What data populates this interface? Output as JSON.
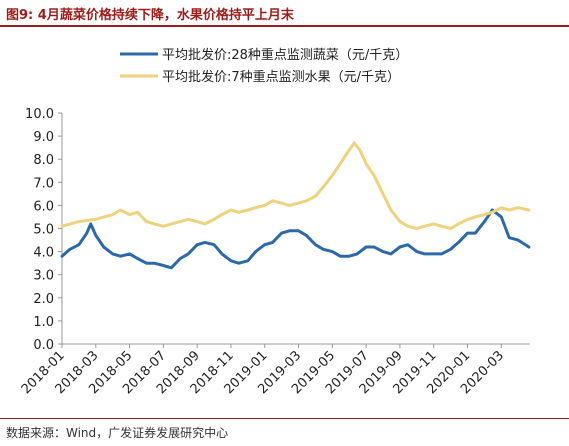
{
  "title": "图9:  4月蔬菜价格持续下降，水果价格持平上月末",
  "source": "数据来源：Wind，广发证券发展研究中心",
  "colors": {
    "title": "#9e1b1b",
    "veg": "#2b69a8",
    "fruit": "#efd27e",
    "axis": "#999999"
  },
  "chart_data": {
    "type": "line",
    "ylim": [
      0,
      10
    ],
    "yticks": [
      "0.0",
      "1.0",
      "2.0",
      "3.0",
      "4.0",
      "5.0",
      "6.0",
      "7.0",
      "8.0",
      "9.0",
      "10.0"
    ],
    "xlim": [
      "2018-01",
      "2020-04"
    ],
    "xticks": [
      "2018-01",
      "2018-03",
      "2018-05",
      "2018-07",
      "2018-09",
      "2018-11",
      "2019-01",
      "2019-03",
      "2019-05",
      "2019-07",
      "2019-09",
      "2019-11",
      "2020-01",
      "2020-03"
    ],
    "legend_position": "top",
    "grid": false,
    "series": [
      {
        "name": "平均批发价:28种重点监测蔬菜（元/千克）",
        "color": "#2b69a8",
        "x": [
          "2018-01-01",
          "2018-01-15",
          "2018-02-01",
          "2018-02-15",
          "2018-02-22",
          "2018-03-01",
          "2018-03-15",
          "2018-04-01",
          "2018-04-15",
          "2018-05-01",
          "2018-05-15",
          "2018-06-01",
          "2018-06-15",
          "2018-07-01",
          "2018-07-15",
          "2018-08-01",
          "2018-08-15",
          "2018-09-01",
          "2018-09-15",
          "2018-10-01",
          "2018-10-15",
          "2018-11-01",
          "2018-11-15",
          "2018-12-01",
          "2018-12-15",
          "2019-01-01",
          "2019-01-15",
          "2019-02-01",
          "2019-02-15",
          "2019-03-01",
          "2019-03-15",
          "2019-04-01",
          "2019-04-15",
          "2019-05-01",
          "2019-05-15",
          "2019-06-01",
          "2019-06-15",
          "2019-07-01",
          "2019-07-15",
          "2019-08-01",
          "2019-08-15",
          "2019-09-01",
          "2019-09-15",
          "2019-10-01",
          "2019-10-15",
          "2019-11-01",
          "2019-11-15",
          "2019-12-01",
          "2019-12-15",
          "2020-01-01",
          "2020-01-15",
          "2020-02-01",
          "2020-02-15",
          "2020-03-01",
          "2020-03-15",
          "2020-04-01",
          "2020-04-20"
        ],
        "values": [
          3.8,
          4.1,
          4.3,
          4.8,
          5.2,
          4.7,
          4.2,
          3.9,
          3.8,
          3.9,
          3.7,
          3.5,
          3.5,
          3.4,
          3.3,
          3.7,
          3.9,
          4.3,
          4.4,
          4.3,
          3.9,
          3.6,
          3.5,
          3.6,
          4.0,
          4.3,
          4.4,
          4.8,
          4.9,
          4.9,
          4.7,
          4.3,
          4.1,
          4.0,
          3.8,
          3.8,
          3.9,
          4.2,
          4.2,
          4.0,
          3.9,
          4.2,
          4.3,
          4.0,
          3.9,
          3.9,
          3.9,
          4.1,
          4.4,
          4.8,
          4.8,
          5.3,
          5.8,
          5.5,
          4.6,
          4.5,
          4.2
        ]
      },
      {
        "name": "平均批发价:7种重点监测水果（元/千克）",
        "color": "#efd27e",
        "x": [
          "2018-01-01",
          "2018-02-01",
          "2018-03-01",
          "2018-04-01",
          "2018-04-15",
          "2018-05-01",
          "2018-05-15",
          "2018-06-01",
          "2018-06-15",
          "2018-07-01",
          "2018-07-15",
          "2018-08-01",
          "2018-08-15",
          "2018-09-01",
          "2018-09-15",
          "2018-10-01",
          "2018-10-15",
          "2018-11-01",
          "2018-11-15",
          "2018-12-01",
          "2018-12-15",
          "2019-01-01",
          "2019-01-15",
          "2019-02-01",
          "2019-02-15",
          "2019-03-01",
          "2019-03-15",
          "2019-04-01",
          "2019-04-15",
          "2019-05-01",
          "2019-05-15",
          "2019-06-01",
          "2019-06-10",
          "2019-06-20",
          "2019-07-01",
          "2019-07-15",
          "2019-08-01",
          "2019-08-15",
          "2019-09-01",
          "2019-09-15",
          "2019-10-01",
          "2019-10-15",
          "2019-11-01",
          "2019-11-15",
          "2019-12-01",
          "2019-12-15",
          "2020-01-01",
          "2020-01-15",
          "2020-02-01",
          "2020-02-15",
          "2020-03-01",
          "2020-03-15",
          "2020-04-01",
          "2020-04-20"
        ],
        "values": [
          5.1,
          5.3,
          5.4,
          5.6,
          5.8,
          5.6,
          5.7,
          5.3,
          5.2,
          5.1,
          5.2,
          5.3,
          5.4,
          5.3,
          5.2,
          5.4,
          5.6,
          5.8,
          5.7,
          5.8,
          5.9,
          6.0,
          6.2,
          6.1,
          6.0,
          6.1,
          6.2,
          6.4,
          6.8,
          7.3,
          7.8,
          8.4,
          8.7,
          8.4,
          7.8,
          7.3,
          6.5,
          5.8,
          5.3,
          5.1,
          5.0,
          5.1,
          5.2,
          5.1,
          5.0,
          5.2,
          5.4,
          5.5,
          5.6,
          5.7,
          5.9,
          5.8,
          5.9,
          5.8
        ]
      }
    ]
  }
}
